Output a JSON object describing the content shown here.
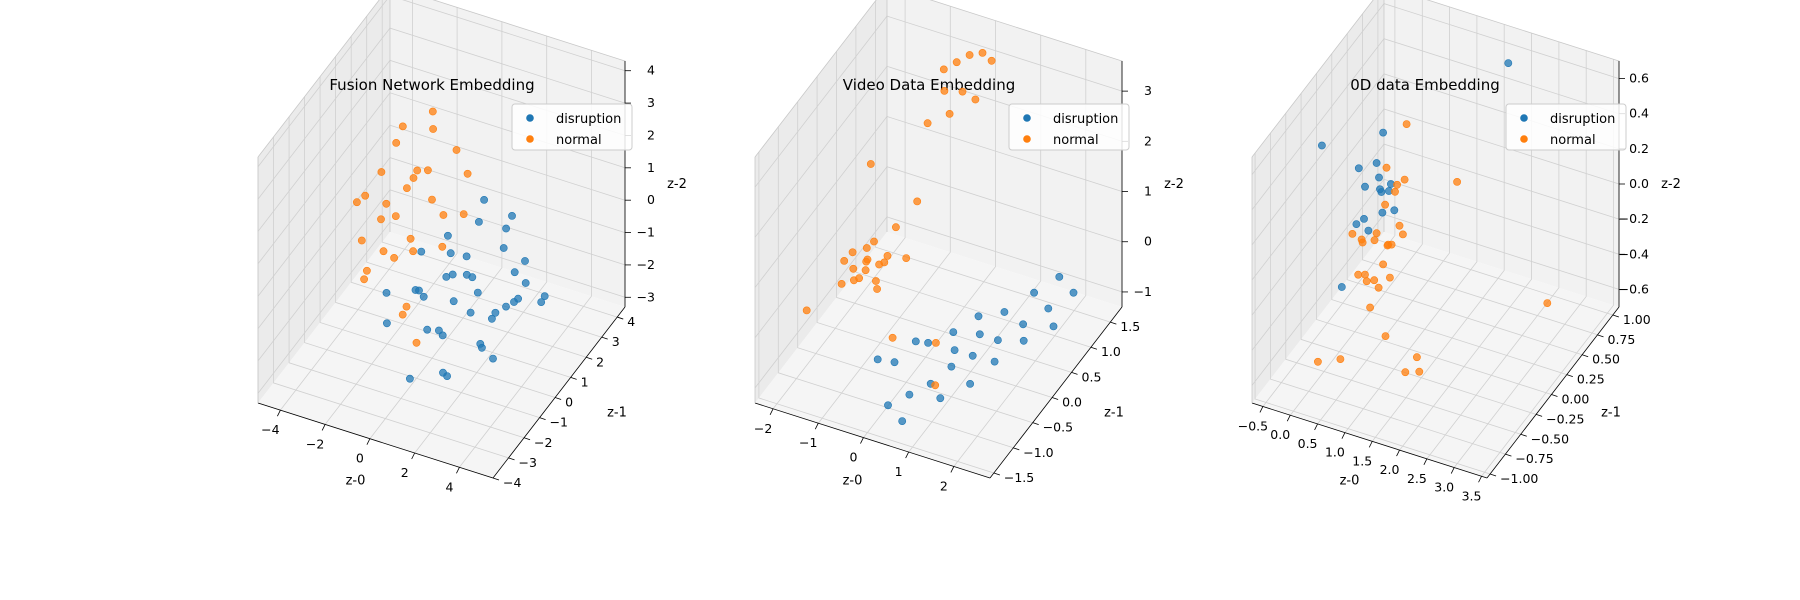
{
  "chart_data": [
    {
      "type": "scatter",
      "title": "Fusion Network Embedding",
      "xlabel": "z-0",
      "ylabel": "z-1",
      "zlabel": "z-2",
      "xlim": [
        -5,
        5.5
      ],
      "ylim": [
        -4,
        4.5
      ],
      "zlim": [
        -3.3,
        4.3
      ],
      "xticks": [
        -4,
        -2,
        0,
        2,
        4
      ],
      "yticks": [
        -4,
        -3,
        -2,
        -1,
        0,
        1,
        2,
        3,
        4
      ],
      "zticks": [
        -3,
        -2,
        -1,
        0,
        1,
        2,
        3,
        4
      ],
      "legend": "top-right",
      "grid": true,
      "series": [
        {
          "name": "disruption",
          "color": "#1f77b4",
          "points": [
            [
              0.5,
              0.2,
              -0.8
            ],
            [
              1.2,
              0.5,
              -0.2
            ],
            [
              2.0,
              -0.4,
              -1.2
            ],
            [
              3.0,
              1.0,
              -0.6
            ],
            [
              3.5,
              0.5,
              -1.0
            ],
            [
              2.2,
              1.6,
              0.2
            ],
            [
              1.0,
              -1.0,
              -1.6
            ],
            [
              0.2,
              -0.6,
              -2.0
            ],
            [
              -0.6,
              -0.2,
              -1.2
            ],
            [
              1.6,
              -1.6,
              -2.4
            ],
            [
              2.6,
              -0.8,
              -0.2
            ],
            [
              3.8,
              -0.2,
              -0.6
            ],
            [
              4.2,
              1.2,
              -1.2
            ],
            [
              1.4,
              1.0,
              0.6
            ],
            [
              0.8,
              2.2,
              0.4
            ],
            [
              -1.0,
              0.6,
              -1.8
            ],
            [
              -1.6,
              -0.6,
              -2.2
            ],
            [
              0.4,
              -2.0,
              -2.6
            ],
            [
              2.8,
              2.0,
              -1.6
            ],
            [
              3.2,
              -1.4,
              -1.4
            ],
            [
              1.8,
              0.0,
              -0.4
            ],
            [
              1.0,
              0.8,
              -1.0
            ],
            [
              2.4,
              0.4,
              -1.8
            ],
            [
              0.0,
              1.2,
              -0.8
            ],
            [
              -0.4,
              1.6,
              -0.6
            ],
            [
              1.2,
              -0.4,
              -0.2
            ],
            [
              2.0,
              1.2,
              -2.2
            ],
            [
              3.6,
              0.8,
              0.0
            ],
            [
              4.6,
              0.4,
              -0.8
            ],
            [
              0.6,
              -1.4,
              -0.4
            ],
            [
              -1.2,
              -1.2,
              -0.8
            ],
            [
              2.2,
              -2.2,
              -2.0
            ],
            [
              1.4,
              2.6,
              -1.2
            ],
            [
              0.2,
              0.4,
              -2.8
            ],
            [
              3.0,
              -0.4,
              -2.4
            ],
            [
              1.6,
              0.8,
              -3.0
            ],
            [
              -0.2,
              -0.4,
              0.2
            ],
            [
              2.6,
              1.4,
              0.8
            ],
            [
              4.0,
              -1.0,
              -0.2
            ],
            [
              0.9,
              0.1,
              -1.4
            ]
          ]
        },
        {
          "name": "normal",
          "color": "#ff7f0e",
          "points": [
            [
              -2.0,
              -0.4,
              0.8
            ],
            [
              -1.4,
              0.4,
              1.4
            ],
            [
              -2.6,
              0.8,
              0.4
            ],
            [
              -1.0,
              -1.0,
              0.2
            ],
            [
              -0.6,
              0.6,
              2.0
            ],
            [
              -1.8,
              1.4,
              1.0
            ],
            [
              0.0,
              0.0,
              1.6
            ],
            [
              -3.0,
              -0.2,
              -0.2
            ],
            [
              -1.2,
              1.8,
              2.4
            ],
            [
              -0.4,
              -0.8,
              0.8
            ],
            [
              -2.2,
              -1.2,
              -0.6
            ],
            [
              0.4,
              1.0,
              2.6
            ],
            [
              -1.6,
              0.0,
              3.0
            ],
            [
              -0.8,
              1.2,
              3.4
            ],
            [
              -2.4,
              0.2,
              1.8
            ],
            [
              0.6,
              -0.2,
              0.4
            ],
            [
              -3.4,
              0.6,
              0.6
            ],
            [
              -1.0,
              -0.2,
              -1.8
            ],
            [
              0.2,
              2.0,
              1.2
            ],
            [
              -2.8,
              -0.8,
              1.4
            ],
            [
              -0.2,
              -1.6,
              -1.0
            ],
            [
              -1.4,
              0.8,
              -0.8
            ],
            [
              -0.8,
              0.2,
              2.2
            ],
            [
              -2.0,
              1.0,
              2.8
            ],
            [
              1.0,
              0.6,
              1.0
            ],
            [
              -3.0,
              1.2,
              -1.4
            ],
            [
              -1.8,
              -1.6,
              0.0
            ],
            [
              0.0,
              -1.0,
              -2.2
            ],
            [
              -1.2,
              -0.6,
              1.2
            ],
            [
              -0.6,
              1.6,
              0.0
            ]
          ]
        }
      ]
    },
    {
      "type": "scatter",
      "title": "Video Data Embedding",
      "xlabel": "z-0",
      "ylabel": "z-1",
      "zlabel": "z-2",
      "xlim": [
        -2.4,
        2.8
      ],
      "ylim": [
        -1.6,
        1.8
      ],
      "zlim": [
        -1.3,
        3.6
      ],
      "xticks": [
        -2,
        -1,
        0,
        1,
        2
      ],
      "yticks": [
        -1.5,
        -1.0,
        -0.5,
        0.0,
        0.5,
        1.0,
        1.5
      ],
      "zticks": [
        -1,
        0,
        1,
        2,
        3
      ],
      "legend": "top-right",
      "grid": true,
      "series": [
        {
          "name": "disruption",
          "color": "#1f77b4",
          "points": [
            [
              0.2,
              -1.2,
              -1.0
            ],
            [
              0.5,
              -1.0,
              -0.9
            ],
            [
              0.8,
              -0.8,
              -0.8
            ],
            [
              1.0,
              -0.5,
              -0.7
            ],
            [
              1.3,
              -0.3,
              -0.6
            ],
            [
              1.6,
              0.0,
              -0.5
            ],
            [
              1.9,
              0.3,
              -0.4
            ],
            [
              2.2,
              0.6,
              -0.3
            ],
            [
              2.5,
              0.9,
              -0.2
            ],
            [
              0.0,
              -0.8,
              -0.6
            ],
            [
              0.4,
              -0.4,
              -0.5
            ],
            [
              0.7,
              -0.1,
              -0.5
            ],
            [
              1.0,
              0.2,
              -0.4
            ],
            [
              1.4,
              0.4,
              -0.4
            ],
            [
              1.8,
              0.7,
              -0.2
            ],
            [
              2.1,
              1.0,
              -0.1
            ],
            [
              0.6,
              -1.3,
              -1.1
            ],
            [
              1.1,
              -0.9,
              -0.9
            ],
            [
              1.5,
              -0.6,
              -0.8
            ],
            [
              0.9,
              -0.3,
              -0.6
            ],
            [
              1.2,
              0.0,
              -0.5
            ],
            [
              1.7,
              -0.2,
              -0.7
            ],
            [
              2.0,
              0.2,
              -0.6
            ],
            [
              2.4,
              0.5,
              -0.5
            ],
            [
              0.3,
              -0.6,
              -0.3
            ],
            [
              -0.2,
              -1.0,
              -0.4
            ]
          ]
        },
        {
          "name": "normal",
          "color": "#ff7f0e",
          "points": [
            [
              -1.6,
              0.0,
              0.0
            ],
            [
              -1.4,
              0.1,
              0.1
            ],
            [
              -1.5,
              -0.1,
              -0.1
            ],
            [
              -1.2,
              0.2,
              0.0
            ],
            [
              -1.3,
              -0.2,
              0.1
            ],
            [
              -1.7,
              0.1,
              0.2
            ],
            [
              -1.1,
              0.0,
              -0.1
            ],
            [
              -1.4,
              0.3,
              0.3
            ],
            [
              -1.6,
              -0.3,
              0.0
            ],
            [
              -1.0,
              0.1,
              0.2
            ],
            [
              -1.2,
              -0.1,
              0.4
            ],
            [
              -1.5,
              0.2,
              -0.2
            ],
            [
              -0.9,
              -0.2,
              0.0
            ],
            [
              -1.3,
              0.0,
              0.5
            ],
            [
              -1.8,
              0.0,
              0.1
            ],
            [
              -1.1,
              0.3,
              0.1
            ],
            [
              -2.2,
              -0.5,
              -0.5
            ],
            [
              -0.6,
              0.2,
              0.3
            ],
            [
              -0.3,
              -0.5,
              -0.5
            ],
            [
              0.4,
              -0.2,
              -0.7
            ],
            [
              0.9,
              -0.8,
              -0.8
            ],
            [
              -1.9,
              0.8,
              1.2
            ],
            [
              -0.8,
              1.4,
              2.8
            ],
            [
              -0.6,
              1.5,
              2.9
            ],
            [
              -0.4,
              1.6,
              3.0
            ],
            [
              -0.2,
              1.7,
              3.0
            ],
            [
              0.0,
              1.7,
              2.9
            ],
            [
              -0.7,
              1.3,
              2.5
            ],
            [
              -0.5,
              1.2,
              2.2
            ],
            [
              -0.3,
              1.3,
              2.6
            ],
            [
              -0.1,
              1.4,
              2.4
            ],
            [
              -0.9,
              1.1,
              2.0
            ],
            [
              -1.0,
              0.4,
              0.6
            ],
            [
              -0.7,
              0.6,
              1.0
            ]
          ]
        }
      ]
    },
    {
      "type": "scatter",
      "title": "0D data Embedding",
      "xlabel": "z-0",
      "ylabel": "z-1",
      "zlabel": "z-2",
      "xlim": [
        -0.7,
        3.6
      ],
      "ylim": [
        -1.05,
        1.1
      ],
      "zlim": [
        -0.7,
        0.7
      ],
      "xticks": [
        -0.5,
        0.0,
        0.5,
        1.0,
        1.5,
        2.0,
        2.5,
        3.0,
        3.5
      ],
      "yticks": [
        -1.0,
        -0.75,
        -0.5,
        -0.25,
        0.0,
        0.25,
        0.5,
        0.75,
        1.0
      ],
      "zticks": [
        -0.6,
        -0.4,
        -0.2,
        0.0,
        0.2,
        0.4,
        0.6
      ],
      "legend": "top-right",
      "grid": true,
      "series": [
        {
          "name": "disruption",
          "color": "#1f77b4",
          "points": [
            [
              0.3,
              -0.1,
              0.2
            ],
            [
              0.4,
              0.0,
              0.3
            ],
            [
              0.35,
              0.1,
              0.1
            ],
            [
              0.5,
              -0.05,
              0.25
            ],
            [
              0.45,
              0.05,
              0.0
            ],
            [
              0.3,
              -0.2,
              0.35
            ],
            [
              0.55,
              0.1,
              0.15
            ],
            [
              0.4,
              0.2,
              0.05
            ],
            [
              0.25,
              0.0,
              -0.1
            ],
            [
              0.6,
              -0.1,
              0.2
            ],
            [
              0.35,
              0.15,
              0.4
            ],
            [
              0.5,
              0.2,
              -0.05
            ],
            [
              0.2,
              -0.15,
              0.0
            ],
            [
              -0.6,
              0.0,
              0.3
            ],
            [
              1.8,
              0.9,
              0.6
            ],
            [
              0.1,
              -0.3,
              -0.3
            ],
            [
              0.45,
              -0.25,
              0.1
            ]
          ]
        },
        {
          "name": "normal",
          "color": "#ff7f0e",
          "points": [
            [
              0.4,
              0.0,
              -0.1
            ],
            [
              0.5,
              0.1,
              -0.2
            ],
            [
              0.3,
              -0.1,
              -0.3
            ],
            [
              0.6,
              0.0,
              -0.15
            ],
            [
              0.45,
              0.2,
              -0.25
            ],
            [
              0.35,
              -0.2,
              -0.05
            ],
            [
              0.55,
              -0.1,
              -0.35
            ],
            [
              0.25,
              0.1,
              -0.2
            ],
            [
              0.65,
              0.15,
              -0.1
            ],
            [
              0.5,
              -0.25,
              -0.25
            ],
            [
              0.4,
              0.3,
              0.0
            ],
            [
              0.3,
              0.05,
              -0.4
            ],
            [
              0.7,
              -0.05,
              -0.3
            ],
            [
              0.2,
              -0.05,
              -0.15
            ],
            [
              0.5,
              0.05,
              0.05
            ],
            [
              0.6,
              0.25,
              -0.2
            ],
            [
              0.35,
              0.15,
              -0.35
            ],
            [
              0.45,
              -0.15,
              -0.45
            ],
            [
              0.55,
              0.2,
              0.1
            ],
            [
              0.4,
              -0.3,
              -0.2
            ],
            [
              0.8,
              0.1,
              0.2
            ],
            [
              0.3,
              0.25,
              0.15
            ],
            [
              1.2,
              0.6,
              0.0
            ],
            [
              0.0,
              -0.6,
              -0.6
            ],
            [
              0.3,
              -0.5,
              -0.6
            ],
            [
              0.9,
              -0.3,
              -0.5
            ],
            [
              1.6,
              -0.6,
              -0.5
            ],
            [
              1.7,
              -0.5,
              -0.45
            ],
            [
              1.8,
              -0.55,
              -0.5
            ],
            [
              3.3,
              0.2,
              -0.3
            ],
            [
              0.5,
              0.4,
              0.35
            ],
            [
              0.35,
              -0.35,
              0.05
            ]
          ]
        }
      ]
    }
  ]
}
